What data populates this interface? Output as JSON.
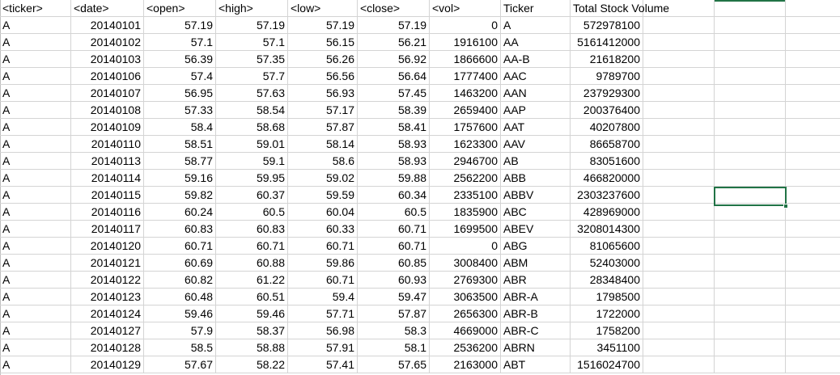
{
  "header": {
    "cells": [
      "<ticker>",
      "<date>",
      "<open>",
      "<high>",
      "<low>",
      "<close>",
      "<vol>",
      "Ticker",
      "Total Stock Volume",
      "",
      "",
      ""
    ]
  },
  "rows": [
    {
      "ticker": "A",
      "date": "20140101",
      "open": "57.19",
      "high": "57.19",
      "low": "57.19",
      "close": "57.19",
      "vol": "0",
      "t2": "A",
      "total": "572978100"
    },
    {
      "ticker": "A",
      "date": "20140102",
      "open": "57.1",
      "high": "57.1",
      "low": "56.15",
      "close": "56.21",
      "vol": "1916100",
      "t2": "AA",
      "total": "5161412000"
    },
    {
      "ticker": "A",
      "date": "20140103",
      "open": "56.39",
      "high": "57.35",
      "low": "56.26",
      "close": "56.92",
      "vol": "1866600",
      "t2": "AA-B",
      "total": "21618200"
    },
    {
      "ticker": "A",
      "date": "20140106",
      "open": "57.4",
      "high": "57.7",
      "low": "56.56",
      "close": "56.64",
      "vol": "1777400",
      "t2": "AAC",
      "total": "9789700"
    },
    {
      "ticker": "A",
      "date": "20140107",
      "open": "56.95",
      "high": "57.63",
      "low": "56.93",
      "close": "57.45",
      "vol": "1463200",
      "t2": "AAN",
      "total": "237929300"
    },
    {
      "ticker": "A",
      "date": "20140108",
      "open": "57.33",
      "high": "58.54",
      "low": "57.17",
      "close": "58.39",
      "vol": "2659400",
      "t2": "AAP",
      "total": "200376400"
    },
    {
      "ticker": "A",
      "date": "20140109",
      "open": "58.4",
      "high": "58.68",
      "low": "57.87",
      "close": "58.41",
      "vol": "1757600",
      "t2": "AAT",
      "total": "40207800"
    },
    {
      "ticker": "A",
      "date": "20140110",
      "open": "58.51",
      "high": "59.01",
      "low": "58.14",
      "close": "58.93",
      "vol": "1623300",
      "t2": "AAV",
      "total": "86658700"
    },
    {
      "ticker": "A",
      "date": "20140113",
      "open": "58.77",
      "high": "59.1",
      "low": "58.6",
      "close": "58.93",
      "vol": "2946700",
      "t2": "AB",
      "total": "83051600"
    },
    {
      "ticker": "A",
      "date": "20140114",
      "open": "59.16",
      "high": "59.95",
      "low": "59.02",
      "close": "59.88",
      "vol": "2562200",
      "t2": "ABB",
      "total": "466820000"
    },
    {
      "ticker": "A",
      "date": "20140115",
      "open": "59.82",
      "high": "60.37",
      "low": "59.59",
      "close": "60.34",
      "vol": "2335100",
      "t2": "ABBV",
      "total": "2303237600"
    },
    {
      "ticker": "A",
      "date": "20140116",
      "open": "60.24",
      "high": "60.5",
      "low": "60.04",
      "close": "60.5",
      "vol": "1835900",
      "t2": "ABC",
      "total": "428969000"
    },
    {
      "ticker": "A",
      "date": "20140117",
      "open": "60.83",
      "high": "60.83",
      "low": "60.33",
      "close": "60.71",
      "vol": "1699500",
      "t2": "ABEV",
      "total": "3208014300"
    },
    {
      "ticker": "A",
      "date": "20140120",
      "open": "60.71",
      "high": "60.71",
      "low": "60.71",
      "close": "60.71",
      "vol": "0",
      "t2": "ABG",
      "total": "81065600"
    },
    {
      "ticker": "A",
      "date": "20140121",
      "open": "60.69",
      "high": "60.88",
      "low": "59.86",
      "close": "60.85",
      "vol": "3008400",
      "t2": "ABM",
      "total": "52403000"
    },
    {
      "ticker": "A",
      "date": "20140122",
      "open": "60.82",
      "high": "61.22",
      "low": "60.71",
      "close": "60.93",
      "vol": "2769300",
      "t2": "ABR",
      "total": "28348400"
    },
    {
      "ticker": "A",
      "date": "20140123",
      "open": "60.48",
      "high": "60.51",
      "low": "59.4",
      "close": "59.47",
      "vol": "3063500",
      "t2": "ABR-A",
      "total": "1798500"
    },
    {
      "ticker": "A",
      "date": "20140124",
      "open": "59.46",
      "high": "59.46",
      "low": "57.71",
      "close": "57.87",
      "vol": "2656300",
      "t2": "ABR-B",
      "total": "1722000"
    },
    {
      "ticker": "A",
      "date": "20140127",
      "open": "57.9",
      "high": "58.37",
      "low": "56.98",
      "close": "58.3",
      "vol": "4669000",
      "t2": "ABR-C",
      "total": "1758200"
    },
    {
      "ticker": "A",
      "date": "20140128",
      "open": "58.5",
      "high": "58.88",
      "low": "57.91",
      "close": "58.1",
      "vol": "2536200",
      "t2": "ABRN",
      "total": "3451100"
    },
    {
      "ticker": "A",
      "date": "20140129",
      "open": "57.67",
      "high": "58.22",
      "low": "57.41",
      "close": "57.65",
      "vol": "2163000",
      "t2": "ABT",
      "total": "1516024700"
    }
  ],
  "colors": {
    "gridline": "#d4d4d4",
    "selection": "#217346",
    "background": "#ffffff"
  }
}
